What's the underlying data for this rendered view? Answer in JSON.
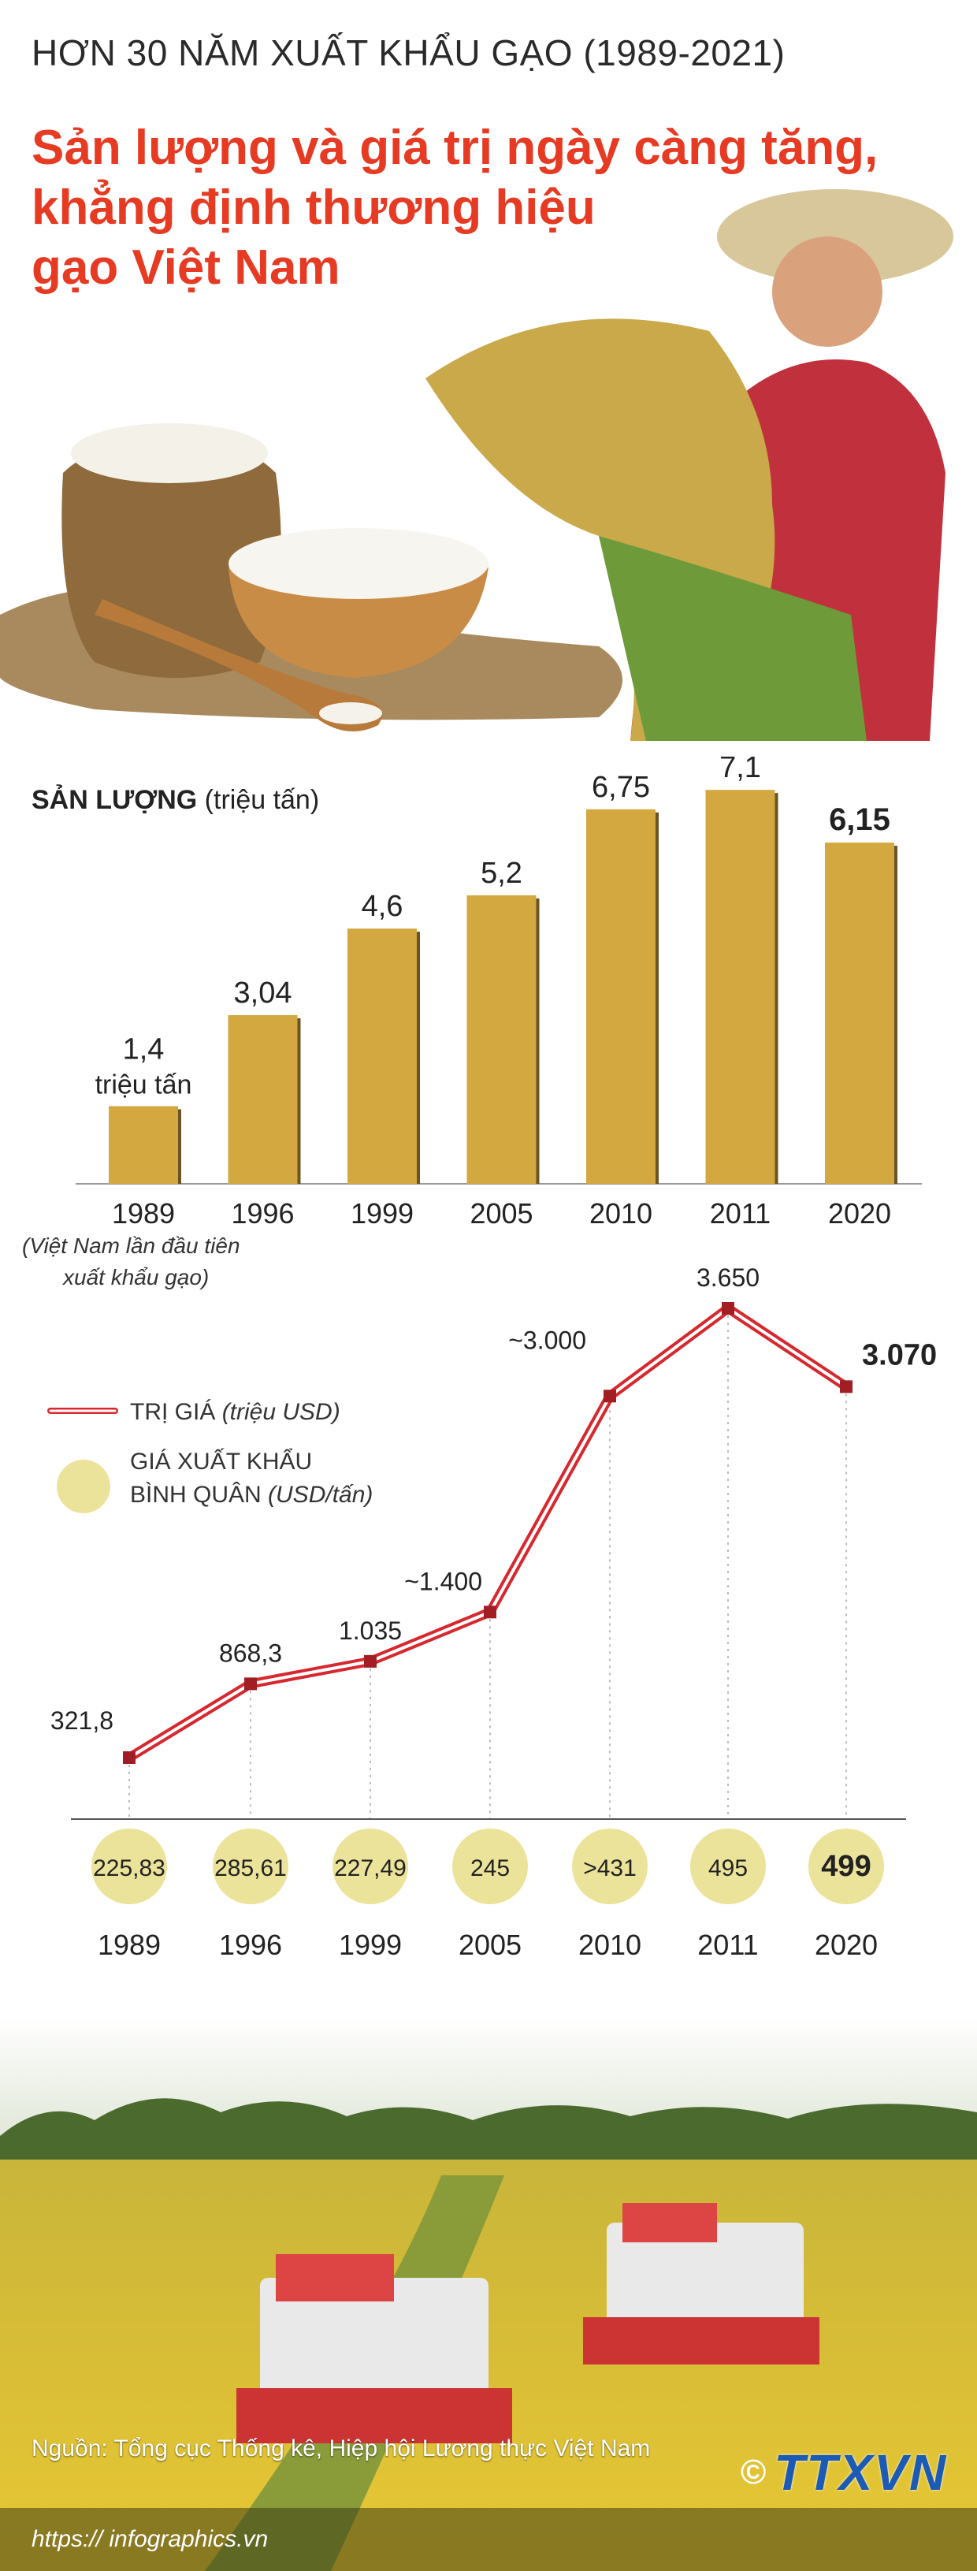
{
  "header": {
    "supertitle": "HƠN 30 NĂM XUẤT KHẨU GẠO (1989-2021)",
    "title_lines": [
      "Sản lượng và giá trị ngày càng tăng,",
      "khẳng định thương hiệu",
      "gạo Việt Nam"
    ]
  },
  "colors": {
    "title_red": "#e63a23",
    "bar_gold": "#d4a840",
    "line_red": "#d6282e",
    "circle_yellow": "#ece39a"
  },
  "production": {
    "heading_bold": "SẢN LƯỢNG",
    "heading_unit": "(triệu tấn)",
    "first_unit_label": "triệu tấn",
    "note_line1": "(Việt Nam lần đầu tiên",
    "note_line2": "xuất khẩu gạo)"
  },
  "value_chart": {
    "legend_value_label": "TRỊ GIÁ",
    "legend_value_unit": "(triệu USD)",
    "legend_price_line1": "GIÁ XUẤT KHẨU",
    "legend_price_line2_plain": "BÌNH QUÂN",
    "legend_price_unit": "(USD/tấn)"
  },
  "chart_data": [
    {
      "type": "bar",
      "title": "SẢN LƯỢNG (triệu tấn)",
      "categories": [
        "1989",
        "1996",
        "1999",
        "2005",
        "2010",
        "2011",
        "2020"
      ],
      "values": [
        1.4,
        3.04,
        4.6,
        5.2,
        6.75,
        7.1,
        6.15
      ],
      "value_labels": [
        "1,4",
        "3,04",
        "4,6",
        "5,2",
        "6,75",
        "7,1",
        "6,15"
      ],
      "highlight_index": 6
    },
    {
      "type": "line",
      "categories": [
        "1989",
        "1996",
        "1999",
        "2005",
        "2010",
        "2011",
        "2020"
      ],
      "series": [
        {
          "name": "TRỊ GIÁ (triệu USD)",
          "values": [
            321.8,
            868.3,
            1035,
            1400,
            3000,
            3650,
            3070
          ],
          "value_labels": [
            "321,8",
            "868,3",
            "1.035",
            "~1.400",
            "~3.000",
            "3.650",
            "3.070"
          ]
        },
        {
          "name": "GIÁ XUẤT KHẨU BÌNH QUÂN (USD/tấn)",
          "values": [
            225.83,
            285.61,
            227.49,
            245,
            431,
            495,
            499
          ],
          "value_labels": [
            "225,83",
            "285,61",
            "227,49",
            "245",
            ">431",
            "495",
            "499"
          ]
        }
      ],
      "highlight_index": 6
    }
  ],
  "footer": {
    "source": "Nguồn: Tổng cục Thống kê, Hiệp hội Lương thực Việt Nam",
    "url": "https:// infographics.vn",
    "logo_text": "TTXVN",
    "copyright": "©"
  }
}
